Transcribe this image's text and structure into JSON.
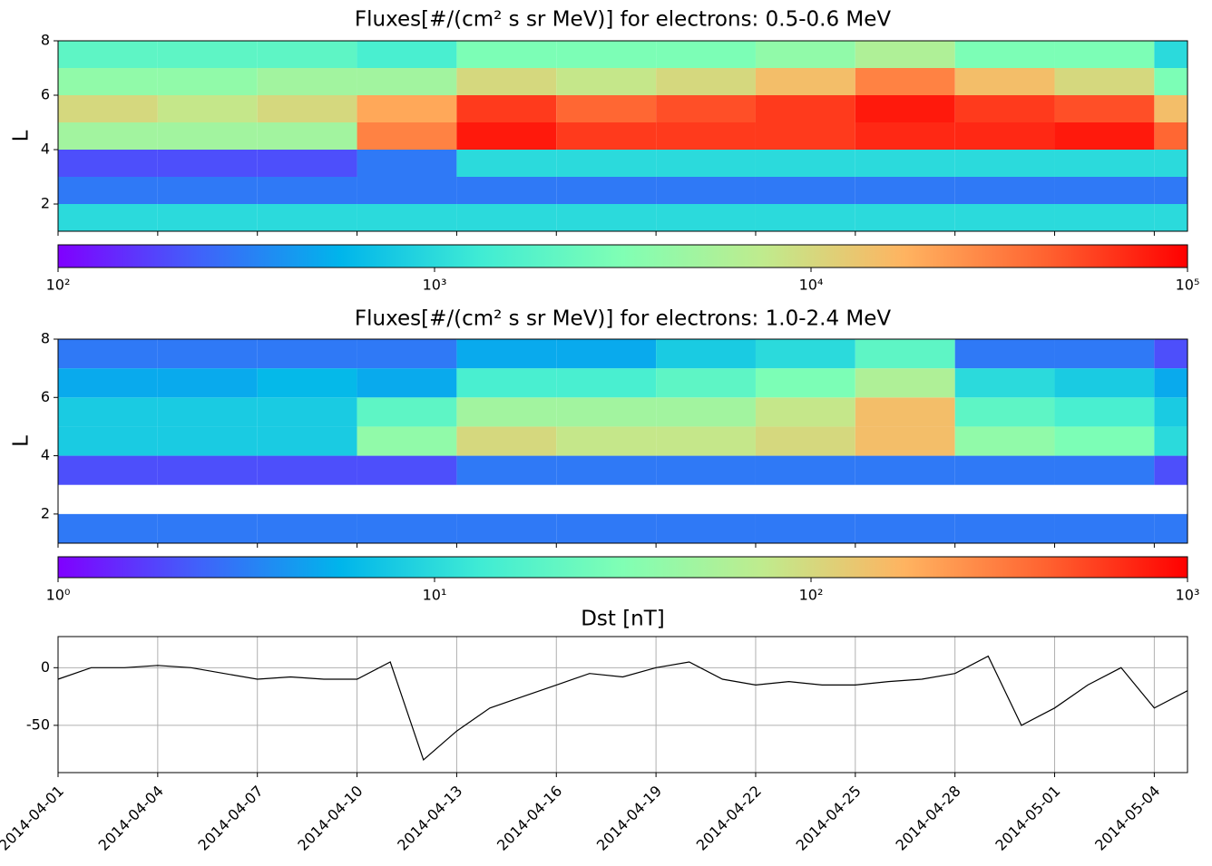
{
  "chart_data": [
    {
      "type": "heatmap",
      "title": "Fluxes[#/(cm² s sr MeV)] for electrons: 0.5-0.6 MeV",
      "ylabel": "L",
      "colormap": "rainbow",
      "log_color": true,
      "x_bins": [
        "2014-04-01",
        "2014-04-04",
        "2014-04-07",
        "2014-04-10",
        "2014-04-13",
        "2014-04-16",
        "2014-04-19",
        "2014-04-22",
        "2014-04-25",
        "2014-04-28",
        "2014-05-01",
        "2014-05-04",
        "2014-05-05"
      ],
      "y_bins": [
        1,
        2,
        3,
        4,
        5,
        6,
        7,
        8
      ],
      "values": [
        [
          1000,
          300,
          200,
          5000,
          10000,
          4000,
          2000
        ],
        [
          1000,
          300,
          200,
          5000,
          8000,
          4000,
          2000
        ],
        [
          1000,
          300,
          200,
          5000,
          10000,
          5000,
          2000
        ],
        [
          1000,
          300,
          300,
          30000,
          20000,
          5000,
          1500
        ],
        [
          1000,
          300,
          1000,
          80000,
          60000,
          10000,
          3000
        ],
        [
          1000,
          300,
          1000,
          60000,
          40000,
          8000,
          3000
        ],
        [
          1000,
          300,
          1000,
          60000,
          50000,
          10000,
          3000
        ],
        [
          1000,
          300,
          1000,
          60000,
          60000,
          15000,
          4000
        ],
        [
          1000,
          300,
          1000,
          70000,
          80000,
          30000,
          6000
        ],
        [
          1000,
          300,
          1000,
          70000,
          60000,
          15000,
          3000
        ],
        [
          1000,
          300,
          1000,
          80000,
          50000,
          10000,
          3000
        ],
        [
          1000,
          300,
          1000,
          40000,
          15000,
          3000,
          1000
        ]
      ],
      "xlim": [
        "2014-04-01",
        "2014-05-05"
      ],
      "xticks": [
        "2014-04-01",
        "2014-04-04",
        "2014-04-07",
        "2014-04-10",
        "2014-04-13",
        "2014-04-16",
        "2014-04-19",
        "2014-04-22",
        "2014-04-25",
        "2014-04-28",
        "2014-05-01",
        "2014-05-04"
      ],
      "ylim": [
        1,
        8
      ],
      "yticks": [
        2,
        4,
        6,
        8
      ],
      "clim": [
        100,
        100000
      ],
      "cticks": [
        {
          "value": 100,
          "label": "10²"
        },
        {
          "value": 1000,
          "label": "10³"
        },
        {
          "value": 10000,
          "label": "10⁴"
        },
        {
          "value": 100000,
          "label": "10⁵"
        }
      ]
    },
    {
      "type": "heatmap",
      "title": "Fluxes[#/(cm² s sr MeV)] for electrons: 1.0-2.4 MeV",
      "ylabel": "L",
      "colormap": "rainbow",
      "log_color": true,
      "x_bins": [
        "2014-04-01",
        "2014-04-04",
        "2014-04-07",
        "2014-04-10",
        "2014-04-13",
        "2014-04-16",
        "2014-04-19",
        "2014-04-22",
        "2014-04-25",
        "2014-04-28",
        "2014-05-01",
        "2014-05-04",
        "2014-05-05"
      ],
      "y_bins": [
        1,
        2,
        3,
        4,
        5,
        6,
        7,
        8
      ],
      "values": [
        [
          3,
          null,
          2,
          8,
          8,
          5,
          3
        ],
        [
          3,
          null,
          2,
          8,
          8,
          5,
          3
        ],
        [
          3,
          null,
          2,
          8,
          8,
          6,
          3
        ],
        [
          3,
          null,
          2,
          40,
          20,
          5,
          3
        ],
        [
          3,
          null,
          3,
          100,
          50,
          15,
          5
        ],
        [
          3,
          null,
          3,
          80,
          50,
          15,
          5
        ],
        [
          3,
          null,
          3,
          80,
          50,
          20,
          8
        ],
        [
          3,
          null,
          3,
          100,
          80,
          30,
          10
        ],
        [
          3,
          null,
          3,
          150,
          150,
          60,
          20
        ],
        [
          3,
          null,
          3,
          40,
          20,
          10,
          3
        ],
        [
          3,
          null,
          3,
          30,
          15,
          8,
          3
        ],
        [
          3,
          null,
          2,
          10,
          8,
          5,
          2
        ]
      ],
      "xlim": [
        "2014-04-01",
        "2014-05-05"
      ],
      "xticks": [
        "2014-04-01",
        "2014-04-04",
        "2014-04-07",
        "2014-04-10",
        "2014-04-13",
        "2014-04-16",
        "2014-04-19",
        "2014-04-22",
        "2014-04-25",
        "2014-04-28",
        "2014-05-01",
        "2014-05-04"
      ],
      "ylim": [
        1,
        8
      ],
      "yticks": [
        2,
        4,
        6,
        8
      ],
      "clim": [
        1,
        1000
      ],
      "cticks": [
        {
          "value": 1,
          "label": "10⁰"
        },
        {
          "value": 10,
          "label": "10¹"
        },
        {
          "value": 100,
          "label": "10²"
        },
        {
          "value": 1000,
          "label": "10³"
        }
      ]
    },
    {
      "type": "line",
      "title": "Dst [nT]",
      "color": "#000000",
      "grid": true,
      "x": [
        "2014-04-01",
        "2014-04-02",
        "2014-04-03",
        "2014-04-04",
        "2014-04-05",
        "2014-04-06",
        "2014-04-07",
        "2014-04-08",
        "2014-04-09",
        "2014-04-10",
        "2014-04-11",
        "2014-04-12",
        "2014-04-13",
        "2014-04-14",
        "2014-04-15",
        "2014-04-16",
        "2014-04-17",
        "2014-04-18",
        "2014-04-19",
        "2014-04-20",
        "2014-04-21",
        "2014-04-22",
        "2014-04-23",
        "2014-04-24",
        "2014-04-25",
        "2014-04-26",
        "2014-04-27",
        "2014-04-28",
        "2014-04-29",
        "2014-04-30",
        "2014-05-01",
        "2014-05-02",
        "2014-05-03",
        "2014-05-04",
        "2014-05-05"
      ],
      "values": [
        -10,
        0,
        0,
        2,
        0,
        -5,
        -10,
        -8,
        -10,
        -10,
        5,
        -80,
        -55,
        -35,
        -25,
        -15,
        -5,
        -8,
        0,
        5,
        -10,
        -15,
        -12,
        -15,
        -15,
        -12,
        -10,
        -5,
        10,
        -50,
        -35,
        -15,
        0,
        -35,
        -20
      ],
      "xlim": [
        "2014-04-01",
        "2014-05-05"
      ],
      "xticks": [
        "2014-04-01",
        "2014-04-04",
        "2014-04-07",
        "2014-04-10",
        "2014-04-13",
        "2014-04-16",
        "2014-04-19",
        "2014-04-22",
        "2014-04-25",
        "2014-04-28",
        "2014-05-01",
        "2014-05-04"
      ],
      "ylim": [
        -91,
        27
      ],
      "yticks": [
        -50,
        0
      ]
    }
  ]
}
